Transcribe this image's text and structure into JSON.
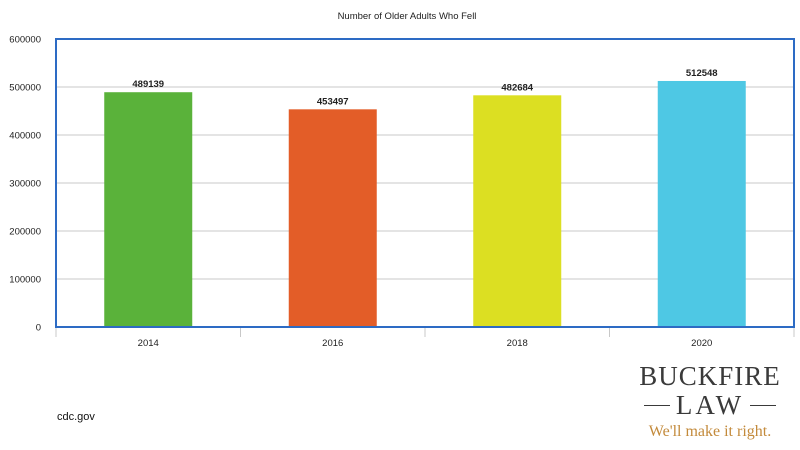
{
  "chart_data": {
    "type": "bar",
    "title": "Number of Older Adults Who Fell",
    "xlabel": "",
    "ylabel": "",
    "categories": [
      "2014",
      "2016",
      "2018",
      "2020"
    ],
    "values": [
      489139,
      453497,
      482684,
      512548
    ],
    "value_labels": [
      "489139",
      "453497",
      "482684",
      "512548"
    ],
    "colors": [
      "#5ab23a",
      "#e35d28",
      "#dcdf22",
      "#4ec8e4"
    ],
    "ylim": [
      0,
      600000
    ],
    "yticks": [
      0,
      100000,
      200000,
      300000,
      400000,
      500000,
      600000
    ],
    "ytick_labels": [
      "0",
      "100000",
      "200000",
      "300000",
      "400000",
      "500000",
      "600000"
    ],
    "grid": true,
    "legend": "none",
    "accent_border_color": "#2d6bc4"
  },
  "source": "cdc.gov",
  "logo": {
    "name": "BUCKFIRE",
    "law": "LAW",
    "tagline": "We'll make it right.",
    "text_color": "#3a3a3a",
    "tagline_color": "#c38a3b"
  }
}
